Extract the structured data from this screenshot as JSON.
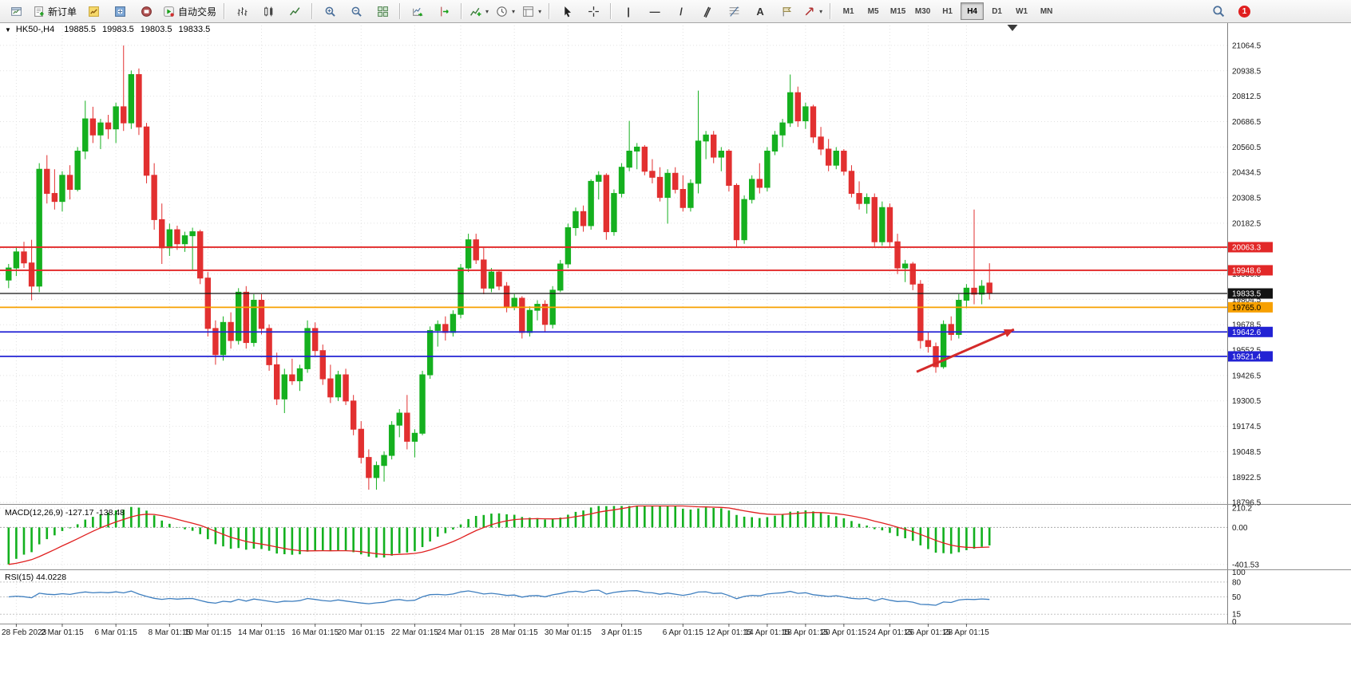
{
  "toolbar": {
    "new_order": "新订单",
    "autotrading": "自动交易",
    "timeframes": [
      "M1",
      "M5",
      "M15",
      "M30",
      "H1",
      "H4",
      "D1",
      "W1",
      "MN"
    ],
    "active_timeframe": "H4",
    "notification_count": "1"
  },
  "icons": {
    "collapse": "▼",
    "caret": "▾",
    "vline": "|",
    "hline": "—",
    "trendline": "/",
    "channel": "∥",
    "text_tool": "A"
  },
  "chart_header": {
    "symbol_period": "HK50-,H4",
    "open": "19885.5",
    "high": "19983.5",
    "low": "19803.5",
    "close": "19833.5"
  },
  "indicators": {
    "macd_label": "MACD(12,26,9) -127.17 -138.48",
    "rsi_label": "RSI(15) 44.0228"
  },
  "chart_data": {
    "type": "candlestick",
    "symbol": "HK50-",
    "timeframe": "H4",
    "price_axis": {
      "min": 18789,
      "max": 21179,
      "ticks": [
        21064.5,
        20938.5,
        20812.5,
        20686.5,
        20560.5,
        20434.5,
        20308.5,
        20182.5,
        20056.5,
        19930.5,
        19804.5,
        19678.5,
        19552.5,
        19426.5,
        19300.5,
        19174.5,
        19048.5,
        18922.5,
        18796.5
      ]
    },
    "hlines": [
      {
        "price": 20063.3,
        "label": "20063.3",
        "color": "#e22828",
        "tcolor": "#ffffff",
        "w": 1.8
      },
      {
        "price": 19948.6,
        "label": "19948.6",
        "color": "#e22828",
        "tcolor": "#ffffff",
        "w": 1.8
      },
      {
        "price": 19833.5,
        "label": "19833.5",
        "color": "#141414",
        "tcolor": "#ffffff",
        "w": 1.2
      },
      {
        "price": 19765.0,
        "label": "19765.0",
        "color": "#f7a000",
        "tcolor": "#000000",
        "w": 1.8
      },
      {
        "price": 19642.6,
        "label": "19642.6",
        "color": "#2222d4",
        "tcolor": "#ffffff",
        "w": 1.8
      },
      {
        "price": 19521.4,
        "label": "19521.4",
        "color": "#2222d4",
        "tcolor": "#ffffff",
        "w": 1.8
      }
    ],
    "colors": {
      "up": "#15b01f",
      "down": "#e23030",
      "grid": "#e2e2e2",
      "macd_hist": "#12b01e",
      "macd_signal": "#e02020",
      "rsi": "#3f7fbf",
      "axis_text": "#1a1a1a",
      "time_text": "#1a1a1a",
      "arrow": "#d42a2a"
    },
    "macd_panel": {
      "params": "12,26,9",
      "value": "-127.17",
      "signal": "-138.48",
      "scale": [
        {
          "v": 210.2,
          "label": "210.2"
        },
        {
          "v": 0,
          "label": "0.00"
        },
        {
          "v": -401.53,
          "label": "-401.53"
        }
      ]
    },
    "rsi_panel": {
      "period": "15",
      "value": "44.0228",
      "scale": [
        {
          "v": 100,
          "label": "100"
        },
        {
          "v": 80,
          "label": "80"
        },
        {
          "v": 50,
          "label": "50"
        },
        {
          "v": 15,
          "label": "15"
        },
        {
          "v": 0,
          "label": "0"
        }
      ],
      "levels": [
        80,
        50,
        15
      ]
    },
    "arrow": {
      "b1": 118.5,
      "p1": 19445,
      "b2": 131.2,
      "p2": 19655
    },
    "shift_marker_bar": 131,
    "time_labels": [
      {
        "t": "28 Feb 2023",
        "b": 1
      },
      {
        "t": "2 Mar 01:15",
        "b": 7
      },
      {
        "t": "6 Mar 01:15",
        "b": 14
      },
      {
        "t": "8 Mar 01:15",
        "b": 21
      },
      {
        "t": "10 Mar 01:15",
        "b": 26
      },
      {
        "t": "14 Mar 01:15",
        "b": 33
      },
      {
        "t": "16 Mar 01:15",
        "b": 40
      },
      {
        "t": "20 Mar 01:15",
        "b": 46
      },
      {
        "t": "22 Mar 01:15",
        "b": 53
      },
      {
        "t": "24 Mar 01:15",
        "b": 59
      },
      {
        "t": "28 Mar 01:15",
        "b": 66
      },
      {
        "t": "30 Mar 01:15",
        "b": 73
      },
      {
        "t": "3 Apr 01:15",
        "b": 80
      },
      {
        "t": "6 Apr 01:15",
        "b": 88
      },
      {
        "t": "12 Apr 01:15",
        "b": 94
      },
      {
        "t": "14 Apr 01:15",
        "b": 99
      },
      {
        "t": "18 Apr 01:15",
        "b": 104
      },
      {
        "t": "20 Apr 01:15",
        "b": 109
      },
      {
        "t": "24 Apr 01:15",
        "b": 115
      },
      {
        "t": "26 Apr 01:15",
        "b": 120
      },
      {
        "t": "28 Apr 01:15",
        "b": 125
      }
    ],
    "candles": [
      [
        19900,
        19980,
        19860,
        19960
      ],
      [
        19960,
        20060,
        19920,
        20040
      ],
      [
        20040,
        20090,
        19960,
        19985
      ],
      [
        19985,
        20100,
        19800,
        19870
      ],
      [
        19870,
        20480,
        19840,
        20450
      ],
      [
        20450,
        20520,
        20280,
        20330
      ],
      [
        20330,
        20450,
        20250,
        20290
      ],
      [
        20290,
        20440,
        20240,
        20420
      ],
      [
        20420,
        20470,
        20300,
        20350
      ],
      [
        20350,
        20560,
        20340,
        20540
      ],
      [
        20540,
        20790,
        20500,
        20700
      ],
      [
        20700,
        20760,
        20580,
        20620
      ],
      [
        20620,
        20700,
        20550,
        20680
      ],
      [
        20680,
        20720,
        20600,
        20650
      ],
      [
        20650,
        20780,
        20580,
        20760
      ],
      [
        20760,
        21064,
        20640,
        20680
      ],
      [
        20680,
        20940,
        20650,
        20920
      ],
      [
        20920,
        20950,
        20620,
        20660
      ],
      [
        20660,
        20680,
        20380,
        20420
      ],
      [
        20420,
        20480,
        20150,
        20200
      ],
      [
        20200,
        20280,
        19980,
        20060
      ],
      [
        20060,
        20180,
        20020,
        20150
      ],
      [
        20150,
        20170,
        20050,
        20080
      ],
      [
        20080,
        20140,
        20040,
        20120
      ],
      [
        20120,
        20160,
        19950,
        20140
      ],
      [
        20140,
        20150,
        19880,
        19910
      ],
      [
        19910,
        19940,
        19620,
        19660
      ],
      [
        19660,
        19700,
        19480,
        19530
      ],
      [
        19530,
        19720,
        19500,
        19690
      ],
      [
        19690,
        19740,
        19560,
        19600
      ],
      [
        19600,
        19860,
        19580,
        19840
      ],
      [
        19840,
        19870,
        19560,
        19590
      ],
      [
        19590,
        19830,
        19570,
        19800
      ],
      [
        19800,
        19830,
        19630,
        19660
      ],
      [
        19660,
        19680,
        19450,
        19480
      ],
      [
        19480,
        19540,
        19280,
        19310
      ],
      [
        19310,
        19460,
        19240,
        19430
      ],
      [
        19430,
        19510,
        19380,
        19400
      ],
      [
        19400,
        19480,
        19350,
        19460
      ],
      [
        19460,
        19700,
        19440,
        19660
      ],
      [
        19660,
        19690,
        19520,
        19550
      ],
      [
        19550,
        19580,
        19380,
        19410
      ],
      [
        19410,
        19480,
        19290,
        19320
      ],
      [
        19320,
        19450,
        19300,
        19430
      ],
      [
        19430,
        19460,
        19280,
        19300
      ],
      [
        19300,
        19330,
        19130,
        19160
      ],
      [
        19160,
        19200,
        18990,
        19020
      ],
      [
        19020,
        19060,
        18860,
        18920
      ],
      [
        18920,
        19000,
        18860,
        18980
      ],
      [
        18980,
        19050,
        18900,
        19030
      ],
      [
        19030,
        19200,
        19010,
        19180
      ],
      [
        19180,
        19260,
        19120,
        19240
      ],
      [
        19240,
        19330,
        19060,
        19100
      ],
      [
        19100,
        19160,
        19020,
        19140
      ],
      [
        19140,
        19450,
        19130,
        19430
      ],
      [
        19430,
        19670,
        19410,
        19650
      ],
      [
        19650,
        19700,
        19570,
        19680
      ],
      [
        19680,
        19720,
        19600,
        19640
      ],
      [
        19640,
        19750,
        19620,
        19730
      ],
      [
        19730,
        19980,
        19710,
        19960
      ],
      [
        19960,
        20130,
        19940,
        20100
      ],
      [
        20100,
        20130,
        19980,
        20000
      ],
      [
        20000,
        20060,
        19830,
        19860
      ],
      [
        19860,
        19960,
        19840,
        19940
      ],
      [
        19940,
        19950,
        19850,
        19870
      ],
      [
        19870,
        19890,
        19740,
        19770
      ],
      [
        19770,
        19830,
        19750,
        19810
      ],
      [
        19810,
        19820,
        19610,
        19640
      ],
      [
        19640,
        19770,
        19620,
        19750
      ],
      [
        19750,
        19800,
        19700,
        19780
      ],
      [
        19780,
        19800,
        19640,
        19680
      ],
      [
        19680,
        19870,
        19660,
        19850
      ],
      [
        19850,
        20000,
        19840,
        19980
      ],
      [
        19980,
        20180,
        19960,
        20160
      ],
      [
        20160,
        20260,
        20120,
        20240
      ],
      [
        20240,
        20270,
        20140,
        20170
      ],
      [
        20170,
        20400,
        20150,
        20390
      ],
      [
        20390,
        20440,
        20300,
        20420
      ],
      [
        20420,
        20430,
        20100,
        20140
      ],
      [
        20140,
        20350,
        20120,
        20330
      ],
      [
        20330,
        20480,
        20310,
        20460
      ],
      [
        20460,
        20690,
        20440,
        20540
      ],
      [
        20540,
        20580,
        20450,
        20560
      ],
      [
        20560,
        20570,
        20420,
        20440
      ],
      [
        20440,
        20500,
        20380,
        20410
      ],
      [
        20410,
        20460,
        20290,
        20310
      ],
      [
        20310,
        20450,
        20180,
        20430
      ],
      [
        20430,
        20460,
        20330,
        20350
      ],
      [
        20350,
        20420,
        20240,
        20260
      ],
      [
        20260,
        20400,
        20240,
        20380
      ],
      [
        20380,
        20840,
        20330,
        20590
      ],
      [
        20590,
        20640,
        20500,
        20620
      ],
      [
        20620,
        20640,
        20480,
        20510
      ],
      [
        20510,
        20560,
        20440,
        20540
      ],
      [
        20540,
        20550,
        20340,
        20370
      ],
      [
        20370,
        20380,
        20060,
        20100
      ],
      [
        20100,
        20320,
        20080,
        20300
      ],
      [
        20300,
        20420,
        20280,
        20400
      ],
      [
        20400,
        20480,
        20330,
        20360
      ],
      [
        20360,
        20560,
        20340,
        20540
      ],
      [
        20540,
        20640,
        20520,
        20620
      ],
      [
        20620,
        20700,
        20560,
        20680
      ],
      [
        20680,
        20920,
        20660,
        20830
      ],
      [
        20830,
        20860,
        20660,
        20690
      ],
      [
        20690,
        20780,
        20650,
        20760
      ],
      [
        20760,
        20770,
        20580,
        20610
      ],
      [
        20610,
        20660,
        20520,
        20550
      ],
      [
        20550,
        20600,
        20440,
        20470
      ],
      [
        20470,
        20560,
        20450,
        20540
      ],
      [
        20540,
        20550,
        20420,
        20440
      ],
      [
        20440,
        20470,
        20310,
        20330
      ],
      [
        20330,
        20390,
        20250,
        20280
      ],
      [
        20280,
        20330,
        20230,
        20310
      ],
      [
        20310,
        20330,
        20060,
        20090
      ],
      [
        20090,
        20290,
        20070,
        20260
      ],
      [
        20260,
        20280,
        20060,
        20090
      ],
      [
        20090,
        20130,
        19930,
        19960
      ],
      [
        19960,
        20000,
        19890,
        19980
      ],
      [
        19980,
        19990,
        19850,
        19880
      ],
      [
        19880,
        19900,
        19560,
        19600
      ],
      [
        19600,
        19640,
        19540,
        19570
      ],
      [
        19570,
        19590,
        19440,
        19470
      ],
      [
        19470,
        19700,
        19460,
        19680
      ],
      [
        19680,
        19720,
        19600,
        19630
      ],
      [
        19630,
        19830,
        19610,
        19800
      ],
      [
        19800,
        19880,
        19760,
        19860
      ],
      [
        19860,
        20250,
        19780,
        19830
      ],
      [
        19830,
        19900,
        19780,
        19870
      ],
      [
        19885.5,
        19983.5,
        19803.5,
        19833.5
      ]
    ]
  }
}
